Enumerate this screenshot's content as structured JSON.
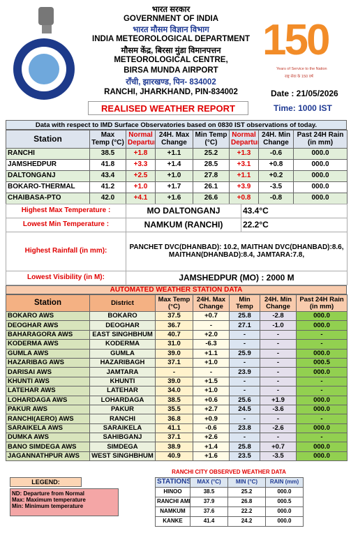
{
  "header": {
    "hindi_gov": "भारत सरकार",
    "gov": "GOVERNMENT OF INDIA",
    "hindi_dept": "भारत मौसम विज्ञान विभाग",
    "dept": "INDIA METEOROLOGICAL DEPARTMENT",
    "hindi_centre": "मौसम केंद्र, बिरसा मुंडा विमानपत्तन",
    "centre": "METEOROLOGICAL CENTRE,",
    "airport": "BIRSA MUNDA AIRPORT",
    "hindi_address": "राँची, झारखण्ड, पिन- 834002",
    "address": "RANCHI, JHARKHAND, PIN-834002",
    "date": "Date : 21/05/2026",
    "time": "Time: 1000 IST",
    "report_title": "REALISED WEATHER REPORT"
  },
  "logo": {
    "number": "150",
    "tagline": "Years of Service to the Nation",
    "hindi_tagline": "राष्ट्र सेवा के 150 वर्ष"
  },
  "surface": {
    "caption": "Data with respect to IMD Surface Observatories based on 0830 IST observations of today.",
    "columns": [
      "Station",
      "Max Temp (°C)",
      "Normal Departure",
      "24H. Max Change",
      "Min Temp (°C)",
      "Normal Departure",
      "24H. Min Change",
      "Past 24H Rain (in mm)"
    ],
    "rows": [
      [
        "RANCHI",
        "38.5",
        "+1.8",
        "+1.1",
        "25.2",
        "+1.3",
        "-0.6",
        "000.0"
      ],
      [
        "JAMSHEDPUR",
        "41.8",
        "+3.3",
        "+1.4",
        "28.5",
        "+3.1",
        "+0.8",
        "000.0"
      ],
      [
        "DALTONGANJ",
        "43.4",
        "+2.5",
        "+1.0",
        "27.8",
        "+1.1",
        "+0.2",
        "000.0"
      ],
      [
        "BOKARO-THERMAL",
        "41.2",
        "+1.0",
        "+1.7",
        "26.1",
        "+3.9",
        "-3.5",
        "000.0"
      ],
      [
        "CHAIBASA-PTO",
        "42.0",
        "+4.1",
        "+1.6",
        "26.6",
        "+0.8",
        "-0.8",
        "000.0"
      ]
    ]
  },
  "summary": [
    [
      "Highest Max Temperature :",
      "MO DALTONGANJ",
      "43.4°C"
    ],
    [
      "Lowest Min Temperature :",
      "NAMKUM (RANCHI)",
      "22.2°C"
    ],
    [
      "Highest Rainfall (in mm):",
      "PANCHET DVC(DHANBAD): 10.2, MAITHAN DVC(DHANBAD):8.6, MAITHAN(DHANBAD):8.4, JAMTARA:7.8,"
    ],
    [
      "Lowest Visibility (in M):",
      "JAMSHEDPUR (MO) : 2000 M"
    ]
  ],
  "aws": {
    "title": "AUTOMATED WEATHER STATION DATA",
    "columns": [
      "Station",
      "District",
      "Max Temp (°C)",
      "24H. Max Change",
      "Min Temp",
      "24H. Min Change",
      "Past 24H Rain (in mm)"
    ],
    "rows": [
      [
        "BOKARO AWS",
        "BOKARO",
        "37.5",
        "+0.7",
        "25.8",
        "-2.8",
        "000.0"
      ],
      [
        "DEOGHAR AWS",
        "DEOGHAR",
        "36.7",
        "-",
        "27.1",
        "-1.0",
        "000.0"
      ],
      [
        "BAHARAGORA AWS",
        "EAST SINGHBHUM",
        "40.7",
        "+2.0",
        "-",
        "-",
        "-"
      ],
      [
        "KODERMA AWS",
        "KODERMA",
        "31.0",
        "-6.3",
        "-",
        "-",
        "-"
      ],
      [
        "GUMLA AWS",
        "GUMLA",
        "39.0",
        "+1.1",
        "25.9",
        "-",
        "000.0"
      ],
      [
        "HAZARIBAG AWS",
        "HAZARIBAGH",
        "37.1",
        "+1.0",
        "-",
        "-",
        "000.5"
      ],
      [
        "DARISAI AWS",
        "JAMTARA",
        "-",
        "-",
        "23.9",
        "-",
        "000.0"
      ],
      [
        "KHUNTI AWS",
        "KHUNTI",
        "39.0",
        "+1.5",
        "-",
        "-",
        "-"
      ],
      [
        "LATEHAR AWS",
        "LATEHAR",
        "34.0",
        "+1.0",
        "-",
        "-",
        "-"
      ],
      [
        "LOHARDAGA AWS",
        "LOHARDAGA",
        "38.5",
        "+0.6",
        "25.6",
        "+1.9",
        "000.0"
      ],
      [
        "PAKUR AWS",
        "PAKUR",
        "35.5",
        "+2.7",
        "24.5",
        "-3.6",
        "000.0"
      ],
      [
        "RANCHI(AERO) AWS",
        "RANCHI",
        "36.8",
        "+0.9",
        "-",
        "-",
        "-"
      ],
      [
        "SARAIKELA AWS",
        "SARAIKELA",
        "41.1",
        "-0.6",
        "23.8",
        "-2.6",
        "000.0"
      ],
      [
        "DUMKA AWS",
        "SAHIBGANJ",
        "37.1",
        "+2.6",
        "-",
        "-",
        "-"
      ],
      [
        "BANO SIMDEGA AWS",
        "SIMDEGA",
        "38.9",
        "+1.4",
        "25.8",
        "+0.7",
        "000.0"
      ],
      [
        "JAGANNATHPUR AWS",
        "WEST SINGHBHUM",
        "40.9",
        "+1.6",
        "23.5",
        "-3.5",
        "000.0"
      ]
    ]
  },
  "legend": {
    "title": "LEGEND:",
    "items": [
      "ND: Departure from Normal",
      "Max: Maximum temperature",
      "Min: Minimum temperature"
    ]
  },
  "city": {
    "title": "RANCHI CITY OBSERVED WEATHER DATA",
    "columns": [
      "STATIONS",
      "MAX (°C)",
      "MIN (°C)",
      "RAIN (mm)"
    ],
    "rows": [
      [
        "HINOO",
        "38.5",
        "25.2",
        "000.0"
      ],
      [
        "RANCHI AMFU",
        "37.9",
        "26.8",
        "000.5"
      ],
      [
        "NAMKUM",
        "37.6",
        "22.2",
        "000.0"
      ],
      [
        "KANKE",
        "41.4",
        "24.2",
        "000.0"
      ]
    ]
  }
}
